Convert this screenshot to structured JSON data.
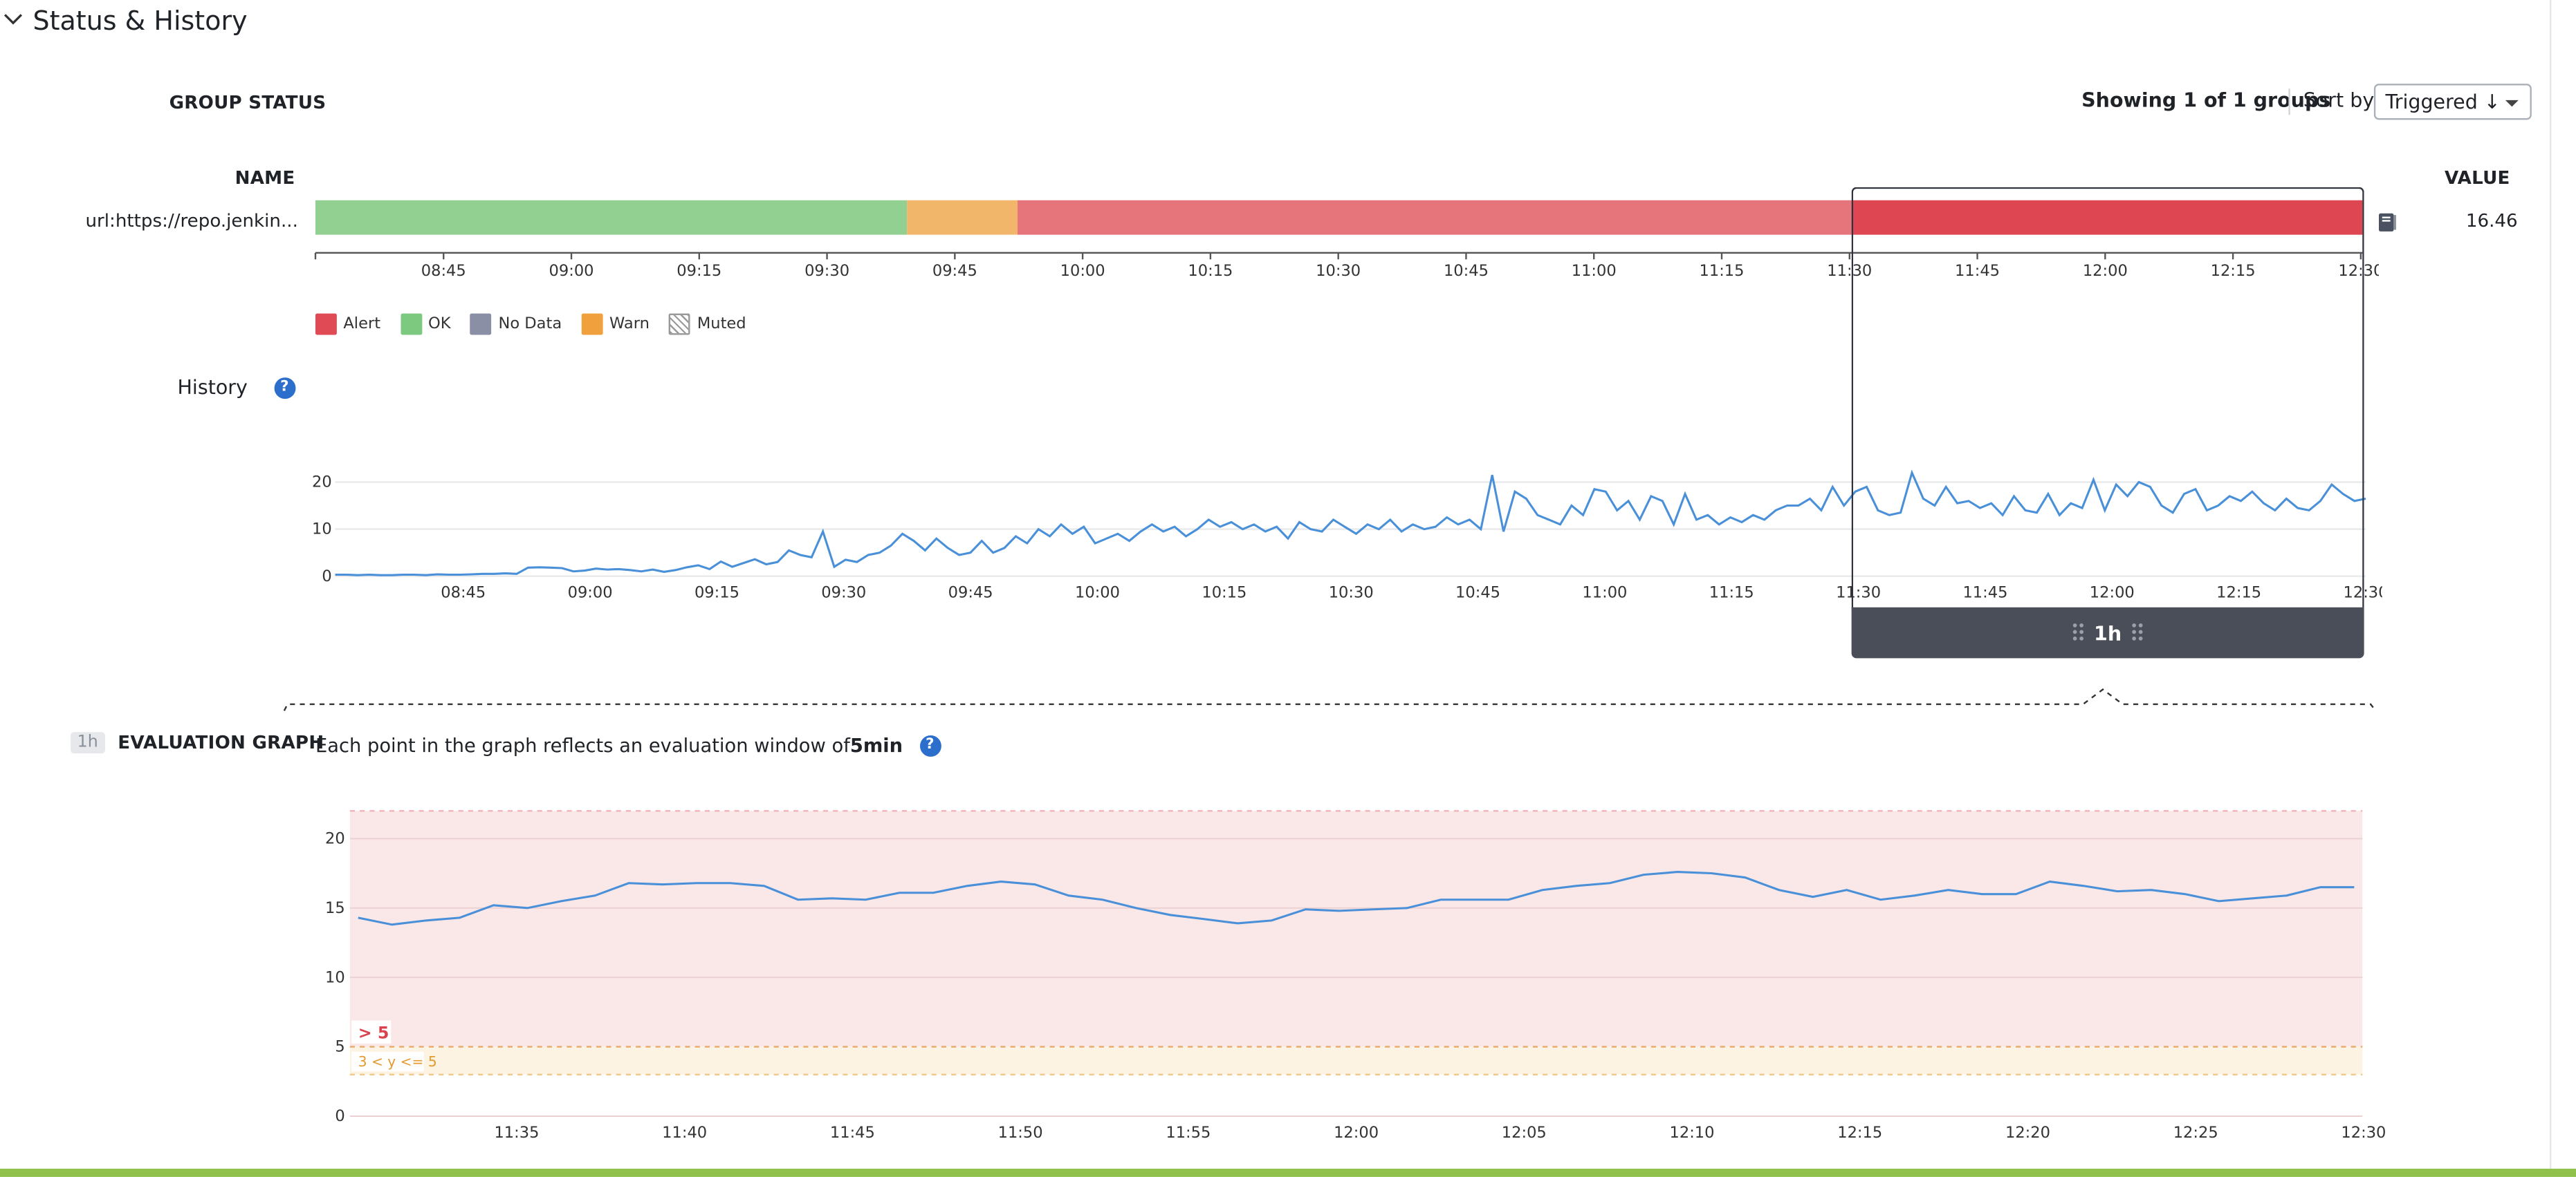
{
  "section": {
    "title": "Status & History",
    "icon": "chevron-down-icon"
  },
  "group_status": {
    "label": "GROUP STATUS",
    "showing": "Showing 1 of 1 groups",
    "sort_label": "Sort by",
    "sort_value": "Triggered ↓",
    "name_header": "NAME",
    "value_header": "VALUE",
    "group_name": "url:https://repo.jenkin...",
    "group_value": "16.46",
    "notebook_icon": "notebook-icon"
  },
  "status_timeline": {
    "ticks": [
      "08:45",
      "09:00",
      "09:15",
      "09:30",
      "09:45",
      "10:00",
      "10:15",
      "10:30",
      "10:45",
      "11:00",
      "11:15",
      "11:30",
      "11:45",
      "12:00",
      "12:15",
      "12:30"
    ],
    "segments": [
      {
        "state": "OK",
        "from": 0.0,
        "to": 0.289
      },
      {
        "state": "Warn",
        "from": 0.289,
        "to": 0.343
      },
      {
        "state": "Alert",
        "from": 0.343,
        "to": 0.751
      },
      {
        "state": "Alert-selected",
        "from": 0.751,
        "to": 1.0
      }
    ]
  },
  "legend": [
    {
      "name": "Alert",
      "color": "#e04a55"
    },
    {
      "name": "OK",
      "color": "#7cc97f"
    },
    {
      "name": "No Data",
      "color": "#8a8fa6"
    },
    {
      "name": "Warn",
      "color": "#f0a03c"
    },
    {
      "name": "Muted",
      "color": "pattern"
    }
  ],
  "history": {
    "label": "History",
    "help_icon": "question-icon",
    "window_label": "1h",
    "drag_icon": "drag-handle-icon"
  },
  "evaluation": {
    "badge": "1h",
    "label": "EVALUATION GRAPH",
    "description_prefix": "Each point in the graph reflects an evaluation window of ",
    "window": "5min",
    "help_icon": "question-icon",
    "alert_threshold": "> 5",
    "warn_threshold": "3 < y <= 5"
  },
  "chart_data": [
    {
      "type": "line",
      "title": "",
      "x_ticks": [
        "08:45",
        "09:00",
        "09:15",
        "09:30",
        "09:45",
        "10:00",
        "10:15",
        "10:30",
        "10:45",
        "11:00",
        "11:15",
        "11:30",
        "11:45",
        "12:00",
        "12:15",
        "12:30"
      ],
      "y_ticks": [
        0,
        10,
        20
      ],
      "ylim": [
        0,
        22
      ],
      "series": [
        {
          "values": [
            0.3,
            0.3,
            0.2,
            0.3,
            0.2,
            0.2,
            0.3,
            0.3,
            0.2,
            0.4,
            0.3,
            0.3,
            0.4,
            0.5,
            0.5,
            0.6,
            0.5,
            1.8,
            1.9,
            1.8,
            1.7,
            1.0,
            1.2,
            1.6,
            1.4,
            1.5,
            1.3,
            1.0,
            1.4,
            0.9,
            1.3,
            1.9,
            2.3,
            1.5,
            3.1,
            2.0,
            2.8,
            3.6,
            2.5,
            3.0,
            5.5,
            4.5,
            4.0,
            9.5,
            2.0,
            3.5,
            3.0,
            4.5,
            5.0,
            6.5,
            9.0,
            7.5,
            5.5,
            8.0,
            6.0,
            4.5,
            5.0,
            7.5,
            5.0,
            6.0,
            8.5,
            7.0,
            10.0,
            8.5,
            11.0,
            9.0,
            10.5,
            7.0,
            8.0,
            9.0,
            7.5,
            9.5,
            11.0,
            9.5,
            10.5,
            8.5,
            10.0,
            12.0,
            10.5,
            11.5,
            10.0,
            11.0,
            9.5,
            10.5,
            8.0,
            11.5,
            10.0,
            9.5,
            12.0,
            10.5,
            9.0,
            11.0,
            10.0,
            12.0,
            9.5,
            11.0,
            10.0,
            10.5,
            12.5,
            11.0,
            12.0,
            10.0,
            21.5,
            9.5,
            18.0,
            16.5,
            13.0,
            12.0,
            11.0,
            15.0,
            13.0,
            18.5,
            18.0,
            14.0,
            16.0,
            12.0,
            17.0,
            16.0,
            11.0,
            17.5,
            12.0,
            13.0,
            11.0,
            12.5,
            11.5,
            13.0,
            12.0,
            14.0,
            15.0,
            15.0,
            16.5,
            14.0,
            19.0,
            15.0,
            18.0,
            19.0,
            14.0,
            13.0,
            13.5,
            22.0,
            16.5,
            15.0,
            19.0,
            15.5,
            16.0,
            14.5,
            15.5,
            13.0,
            17.0,
            14.0,
            13.5,
            17.5,
            13.0,
            15.5,
            14.5,
            20.5,
            14.0,
            19.5,
            17.0,
            20.0,
            19.0,
            15.0,
            13.5,
            17.5,
            18.5,
            14.0,
            15.0,
            17.0,
            16.0,
            18.0,
            15.5,
            14.0,
            16.5,
            14.5,
            14.0,
            16.0,
            19.5,
            17.5,
            16.0,
            16.5
          ]
        }
      ]
    },
    {
      "type": "line",
      "title": "",
      "x_ticks": [
        "11:35",
        "11:40",
        "11:45",
        "11:50",
        "11:55",
        "12:00",
        "12:05",
        "12:10",
        "12:15",
        "12:20",
        "12:25",
        "12:30"
      ],
      "y_ticks": [
        0,
        5,
        10,
        15,
        20
      ],
      "ylim": [
        0,
        22
      ],
      "thresholds": {
        "alert": 5,
        "warn": 3
      },
      "series": [
        {
          "values": [
            14.3,
            13.8,
            14.1,
            14.3,
            15.2,
            15.0,
            15.5,
            15.9,
            16.8,
            16.7,
            16.8,
            16.8,
            16.6,
            15.6,
            15.7,
            15.6,
            16.1,
            16.1,
            16.6,
            16.9,
            16.7,
            15.9,
            15.6,
            15.0,
            14.5,
            14.2,
            13.9,
            14.1,
            14.9,
            14.8,
            14.9,
            15.0,
            15.6,
            15.6,
            15.6,
            16.3,
            16.6,
            16.8,
            17.4,
            17.6,
            17.5,
            17.2,
            16.3,
            15.8,
            16.3,
            15.6,
            15.9,
            16.3,
            16.0,
            16.0,
            16.9,
            16.6,
            16.2,
            16.3,
            16.0,
            15.5,
            15.7,
            15.9,
            16.5,
            16.5
          ]
        }
      ]
    }
  ]
}
